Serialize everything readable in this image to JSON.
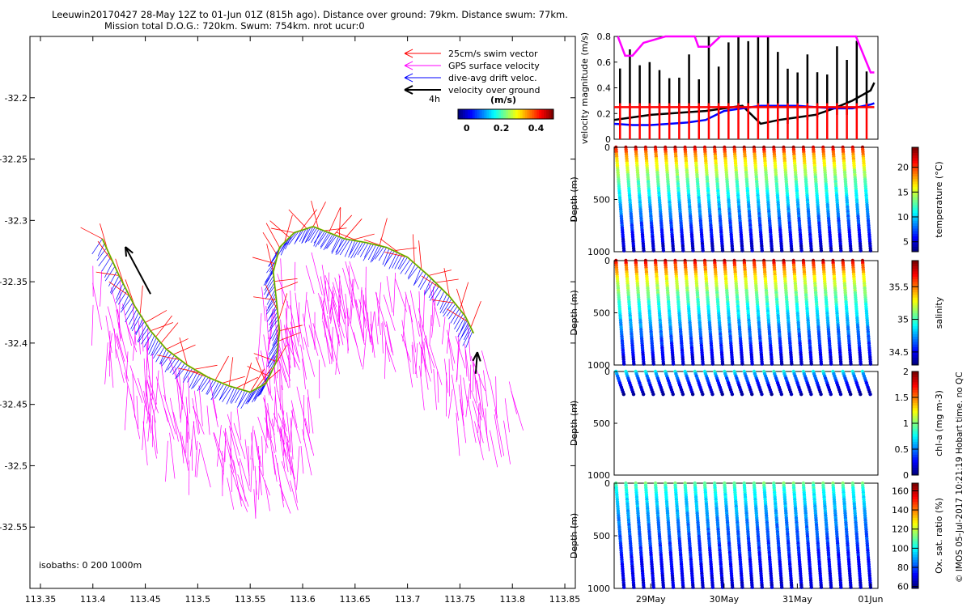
{
  "header": {
    "line1": "Leeuwin20170427 28-May 12Z to 01-Jun 01Z (815h ago). Distance over ground: 79km. Distance swum: 77km.",
    "line2": "Mission total D.O.G.: 720km. Swum: 754km. nrot ucur:0"
  },
  "credit": "© IMOS 05-Jul-2017 10:21:19 Hobart time. no QC",
  "colors": {
    "swim": "#ff0000",
    "gps": "#ff00ff",
    "drift": "#0000ff",
    "vog": "#000000"
  },
  "chart_data": [
    {
      "type": "scatter",
      "name": "map",
      "x_ticks": [
        "113.35",
        "113.4",
        "113.45",
        "113.5",
        "113.55",
        "113.6",
        "113.65",
        "113.7",
        "113.75",
        "113.8",
        "113.85"
      ],
      "y_ticks": [
        "-32.2",
        "-32.25",
        "-32.3",
        "-32.35",
        "-32.4",
        "-32.45",
        "-32.5",
        "-32.55"
      ],
      "xlim": [
        113.34,
        113.86
      ],
      "ylim": [
        -32.6,
        -32.15
      ],
      "legend": {
        "placement": "top-right",
        "entries": [
          "25cm/s swim vector",
          "GPS surface velocity",
          "dive-avg drift veloc.",
          "velocity over ground"
        ],
        "scale_label": "4h",
        "colorbar_title": "(m/s)",
        "colorbar_ticks": [
          "0",
          "0.2",
          "0.4"
        ],
        "colorbar_range": [
          -0.05,
          0.5
        ]
      },
      "annotation": "isobaths: 0   200  1000m",
      "track": [
        [
          113.409,
          -32.315
        ],
        [
          113.425,
          -32.345
        ],
        [
          113.44,
          -32.37
        ],
        [
          113.455,
          -32.39
        ],
        [
          113.47,
          -32.405
        ],
        [
          113.49,
          -32.418
        ],
        [
          113.51,
          -32.428
        ],
        [
          113.53,
          -32.435
        ],
        [
          113.55,
          -32.44
        ],
        [
          113.565,
          -32.433
        ],
        [
          113.575,
          -32.415
        ],
        [
          113.578,
          -32.39
        ],
        [
          113.575,
          -32.365
        ],
        [
          113.572,
          -32.342
        ],
        [
          113.578,
          -32.322
        ],
        [
          113.592,
          -32.31
        ],
        [
          113.61,
          -32.305
        ],
        [
          113.625,
          -32.31
        ],
        [
          113.64,
          -32.315
        ],
        [
          113.66,
          -32.318
        ],
        [
          113.68,
          -32.322
        ],
        [
          113.7,
          -32.33
        ],
        [
          113.72,
          -32.345
        ],
        [
          113.74,
          -32.362
        ],
        [
          113.755,
          -32.378
        ],
        [
          113.763,
          -32.392
        ]
      ],
      "vog_arrows": [
        {
          "x": 113.455,
          "y": -32.36,
          "u": -0.3,
          "v": 0.48
        },
        {
          "x": 113.765,
          "y": -32.425,
          "u": 0.02,
          "v": 0.22
        }
      ],
      "gps_mean": {
        "u": 0.05,
        "v": -0.28
      },
      "drift_mean": {
        "u": -0.1,
        "v": -0.15
      }
    },
    {
      "type": "line",
      "name": "velocity",
      "ylabel": "velocity magnitude (m/s)",
      "ylim": [
        0,
        0.8
      ],
      "y_ticks": [
        "0",
        "0.2",
        "0.4",
        "0.6",
        "0.8"
      ],
      "series": [
        {
          "color": "#000000",
          "x": [
            28.5,
            28.75,
            29.0,
            29.25,
            29.5,
            29.75,
            30.0,
            30.25,
            30.5,
            30.75,
            31.0,
            31.25,
            31.5,
            31.75,
            32.0,
            32.05
          ],
          "y": [
            0.15,
            0.17,
            0.19,
            0.2,
            0.21,
            0.22,
            0.24,
            0.26,
            0.12,
            0.15,
            0.17,
            0.19,
            0.24,
            0.3,
            0.38,
            0.44
          ]
        },
        {
          "color": "#0000ff",
          "x": [
            28.5,
            28.75,
            29.0,
            29.25,
            29.5,
            29.75,
            30.0,
            30.25,
            30.5,
            30.75,
            31.0,
            31.25,
            31.5,
            31.75,
            32.0,
            32.05
          ],
          "y": [
            0.12,
            0.11,
            0.11,
            0.12,
            0.13,
            0.15,
            0.22,
            0.24,
            0.26,
            0.26,
            0.26,
            0.25,
            0.24,
            0.24,
            0.27,
            0.28
          ]
        },
        {
          "color": "#ff0000",
          "x": [
            28.5,
            28.75,
            29.0,
            29.25,
            29.5,
            29.75,
            30.0,
            30.25,
            30.5,
            30.75,
            31.0,
            31.25,
            31.5,
            31.75,
            32.0,
            32.05
          ],
          "y": [
            0.25,
            0.25,
            0.25,
            0.25,
            0.25,
            0.25,
            0.25,
            0.25,
            0.25,
            0.25,
            0.25,
            0.25,
            0.25,
            0.25,
            0.25,
            0.25
          ]
        },
        {
          "color": "#ff00ff",
          "x": [
            28.55,
            28.65,
            28.75,
            28.9,
            29.2,
            29.6,
            29.65,
            29.8,
            29.95,
            30.05,
            31.05,
            31.3,
            31.8,
            32.0,
            32.05
          ],
          "y": [
            0.8,
            0.65,
            0.65,
            0.75,
            0.8,
            0.8,
            0.72,
            0.72,
            0.8,
            0.8,
            0.8,
            0.8,
            0.8,
            0.52,
            0.52
          ]
        }
      ]
    },
    {
      "type": "scatter",
      "name": "temperature",
      "ylabel": "Depth (m)",
      "yticks": [
        "0",
        "500",
        "1000"
      ],
      "ylim": [
        1000,
        0
      ],
      "colorbar_label": "temperature (°C)",
      "colorbar_ticks": [
        "5",
        "10",
        "15",
        "20"
      ],
      "colorbar_range": [
        3,
        24
      ],
      "surface_value": 23,
      "deep_value": 4,
      "max_depth": 1000
    },
    {
      "type": "scatter",
      "name": "salinity",
      "ylabel": "Depth (m)",
      "yticks": [
        "0",
        "500",
        "1000"
      ],
      "ylim": [
        1000,
        0
      ],
      "colorbar_label": "salinity",
      "colorbar_ticks": [
        "34.5",
        "35",
        "35.5"
      ],
      "colorbar_range": [
        34.3,
        35.9
      ],
      "surface_value": 35.85,
      "deep_value": 34.4,
      "max_depth": 1000
    },
    {
      "type": "scatter",
      "name": "chla",
      "ylabel": "Depth (m)",
      "yticks": [
        "0",
        "500",
        "1000"
      ],
      "ylim": [
        1000,
        0
      ],
      "colorbar_label": "chl-a (mg m-3)",
      "colorbar_ticks": [
        "0",
        "0.5",
        "1",
        "1.5",
        "2"
      ],
      "colorbar_range": [
        0,
        2
      ],
      "surface_value": 0.8,
      "deep_value": 0.05,
      "max_depth": 230
    },
    {
      "type": "scatter",
      "name": "oxygen",
      "ylabel": "Depth (m)",
      "yticks": [
        "0",
        "500",
        "1000"
      ],
      "ylim": [
        1000,
        0
      ],
      "colorbar_label": "Ox. sat. ratio (%)",
      "colorbar_ticks": [
        "60",
        "80",
        "100",
        "120",
        "140",
        "160"
      ],
      "colorbar_range": [
        58,
        168
      ],
      "surface_value": 112,
      "deep_value": 66,
      "max_depth": 1000
    },
    {
      "type": "axis",
      "name": "time",
      "x_ticks": [
        {
          "label": "29May",
          "day": 29
        },
        {
          "label": "30May",
          "day": 30
        },
        {
          "label": "31May",
          "day": 31
        },
        {
          "label": "01Jun",
          "day": 32
        }
      ],
      "xlim": [
        28.5,
        32.1
      ],
      "profile_count": 26
    }
  ]
}
